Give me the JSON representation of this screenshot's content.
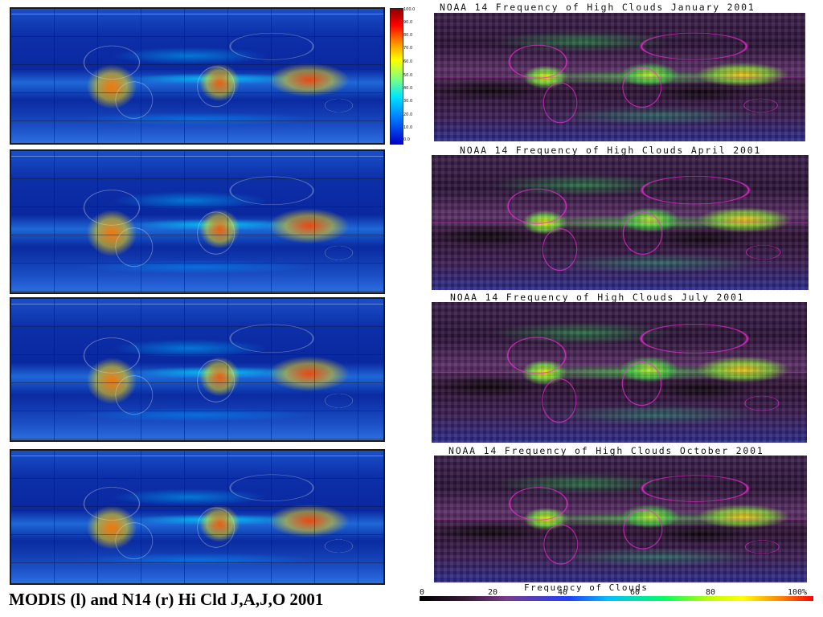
{
  "caption": "MODIS (l) and N14 (r) Hi Cld J,A,J,O 2001",
  "modis_colorbar": {
    "labels": [
      "100.0",
      "90.0",
      "80.0",
      "70.0",
      "60.0",
      "50.0",
      "40.0",
      "30.0",
      "20.0",
      "10.0",
      "0.0"
    ]
  },
  "noaa_panels": [
    {
      "title": "NOAA 14 Frequency of High Clouds January 2001"
    },
    {
      "title": "NOAA 14 Frequency of High Clouds April 2001"
    },
    {
      "title": "NOAA 14 Frequency of High Clouds July 2001"
    },
    {
      "title": "NOAA 14 Frequency of High Clouds October 2001"
    }
  ],
  "noaa_scale": {
    "title": "Frequency of Clouds",
    "ticks": [
      "0",
      "20",
      "40",
      "60",
      "80",
      "100%"
    ]
  },
  "colors": {
    "coastline_noaa": "#ff28dc",
    "coastline_modis": "#e6e6e6"
  }
}
